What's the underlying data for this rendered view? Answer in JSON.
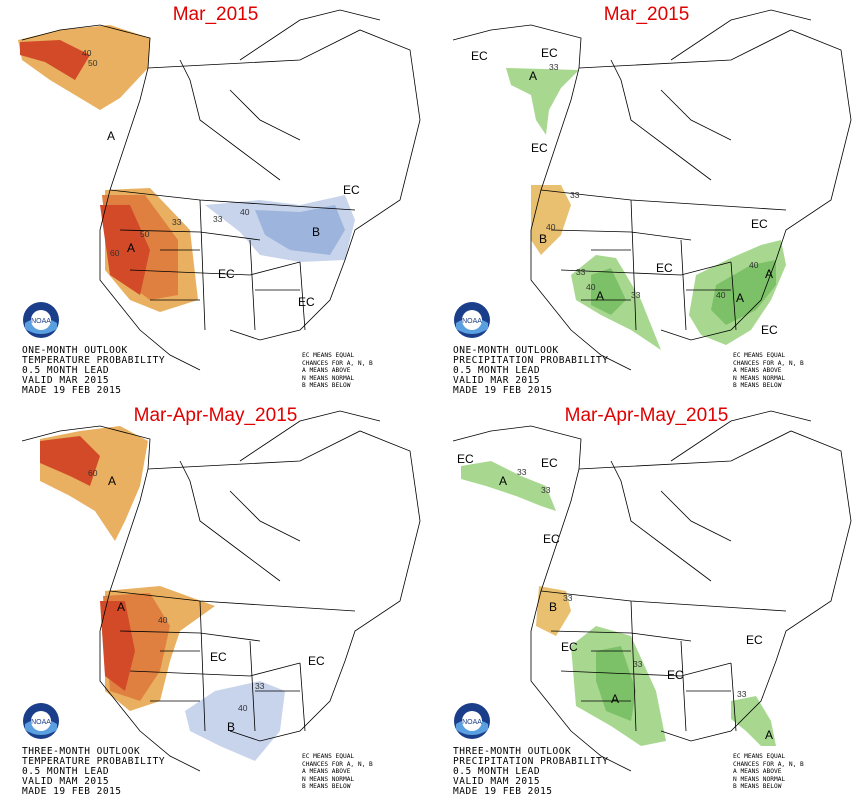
{
  "panels": [
    {
      "id": "temp-month",
      "title": "Mar_2015",
      "footer_lines": [
        "ONE-MONTH OUTLOOK",
        "TEMPERATURE PROBABILITY",
        "0.5 MONTH LEAD",
        "VALID MAR 2015",
        "MADE 19 FEB 2015"
      ],
      "legend_lines": [
        "EC MEANS EQUAL",
        "CHANCES FOR A, N, B",
        "A MEANS ABOVE",
        "N MEANS NORMAL",
        "B MEANS BELOW"
      ],
      "labels": {
        "ec": [
          "EC",
          "EC",
          "EC"
        ],
        "a": [
          "A",
          "A"
        ],
        "b": [
          "B"
        ],
        "nums": [
          "40",
          "50",
          "33",
          "50",
          "60",
          "40",
          "33"
        ]
      }
    },
    {
      "id": "precip-month",
      "title": "Mar_2015",
      "footer_lines": [
        "ONE-MONTH OUTLOOK",
        "PRECIPITATION PROBABILITY",
        "0.5 MONTH LEAD",
        "VALID MAR 2015",
        "MADE 19 FEB 2015"
      ],
      "legend_lines": [
        "EC MEANS EQUAL",
        "CHANCES FOR A, N, B",
        "A MEANS ABOVE",
        "N MEANS NORMAL",
        "B MEANS BELOW"
      ],
      "labels": {
        "ec": [
          "EC",
          "EC",
          "EC",
          "EC",
          "EC",
          "EC"
        ],
        "a": [
          "A",
          "A",
          "A",
          "A"
        ],
        "b": [
          "B"
        ],
        "nums": [
          "33",
          "40",
          "33",
          "40",
          "33",
          "33",
          "40",
          "40"
        ]
      }
    },
    {
      "id": "temp-season",
      "title": "Mar-Apr-May_2015",
      "footer_lines": [
        "THREE-MONTH OUTLOOK",
        "TEMPERATURE PROBABILITY",
        "0.5 MONTH LEAD",
        "VALID MAM 2015",
        "MADE 19 FEB 2015"
      ],
      "legend_lines": [
        "EC MEANS EQUAL",
        "CHANCES FOR A, N, B",
        "A MEANS ABOVE",
        "N MEANS NORMAL",
        "B MEANS BELOW"
      ],
      "labels": {
        "ec": [
          "EC",
          "EC"
        ],
        "a": [
          "A",
          "A"
        ],
        "b": [
          "B"
        ],
        "nums": [
          "60",
          "40",
          "33",
          "40"
        ]
      }
    },
    {
      "id": "precip-season",
      "title": "Mar-Apr-May_2015",
      "footer_lines": [
        "THREE-MONTH OUTLOOK",
        "PRECIPITATION PROBABILITY",
        "0.5 MONTH LEAD",
        "VALID MAM 2015",
        "MADE 19 FEB 2015"
      ],
      "legend_lines": [
        "EC MEANS EQUAL",
        "CHANCES FOR A, N, B",
        "A MEANS ABOVE",
        "N MEANS NORMAL",
        "B MEANS BELOW"
      ],
      "labels": {
        "ec": [
          "EC",
          "EC",
          "EC",
          "EC",
          "EC",
          "EC"
        ],
        "a": [
          "A",
          "A",
          "A"
        ],
        "b": [
          "B"
        ],
        "nums": [
          "33",
          "33",
          "33",
          "33",
          "33"
        ]
      }
    }
  ],
  "logo_text": "NOAA",
  "colors": {
    "warm1": "#e8b060",
    "warm2": "#e08040",
    "warm3": "#d24a28",
    "warm4": "#c02818",
    "cool1": "#c8d4ec",
    "cool2": "#9db4dc",
    "wet1": "#a8d890",
    "wet2": "#7cc068",
    "dry1": "#e8c070"
  }
}
